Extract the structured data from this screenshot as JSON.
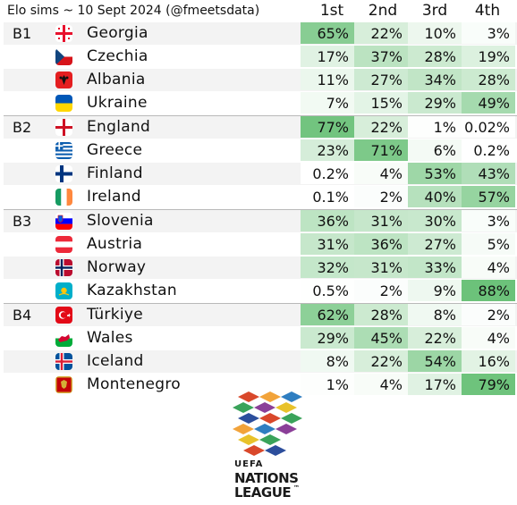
{
  "header": {
    "title": "Elo sims ~ 10 Sept 2024 (@fmeetsdata)",
    "columns": [
      "1st",
      "2nd",
      "3rd",
      "4th"
    ]
  },
  "groups": [
    {
      "label": "B1",
      "teams": [
        {
          "name": "Georgia",
          "flag": "georgia-flag",
          "values": [
            "65%",
            "22%",
            "10%",
            "3%"
          ],
          "probs": [
            65,
            22,
            10,
            3
          ]
        },
        {
          "name": "Czechia",
          "flag": "czechia-flag",
          "values": [
            "17%",
            "37%",
            "28%",
            "19%"
          ],
          "probs": [
            17,
            37,
            28,
            19
          ]
        },
        {
          "name": "Albania",
          "flag": "albania-flag",
          "values": [
            "11%",
            "27%",
            "34%",
            "28%"
          ],
          "probs": [
            11,
            27,
            34,
            28
          ]
        },
        {
          "name": "Ukraine",
          "flag": "ukraine-flag",
          "values": [
            "7%",
            "15%",
            "29%",
            "49%"
          ],
          "probs": [
            7,
            15,
            29,
            49
          ]
        }
      ]
    },
    {
      "label": "B2",
      "teams": [
        {
          "name": "England",
          "flag": "england-flag",
          "values": [
            "77%",
            "22%",
            "1%",
            "0.02%"
          ],
          "probs": [
            77,
            22,
            1,
            0.02
          ]
        },
        {
          "name": "Greece",
          "flag": "greece-flag",
          "values": [
            "23%",
            "71%",
            "6%",
            "0.2%"
          ],
          "probs": [
            23,
            71,
            6,
            0.2
          ]
        },
        {
          "name": "Finland",
          "flag": "finland-flag",
          "values": [
            "0.2%",
            "4%",
            "53%",
            "43%"
          ],
          "probs": [
            0.2,
            4,
            53,
            43
          ]
        },
        {
          "name": "Ireland",
          "flag": "ireland-flag",
          "values": [
            "0.1%",
            "2%",
            "40%",
            "57%"
          ],
          "probs": [
            0.1,
            2,
            40,
            57
          ]
        }
      ]
    },
    {
      "label": "B3",
      "teams": [
        {
          "name": "Slovenia",
          "flag": "slovenia-flag",
          "values": [
            "36%",
            "31%",
            "30%",
            "3%"
          ],
          "probs": [
            36,
            31,
            30,
            3
          ]
        },
        {
          "name": "Austria",
          "flag": "austria-flag",
          "values": [
            "31%",
            "36%",
            "27%",
            "5%"
          ],
          "probs": [
            31,
            36,
            27,
            5
          ]
        },
        {
          "name": "Norway",
          "flag": "norway-flag",
          "values": [
            "32%",
            "31%",
            "33%",
            "4%"
          ],
          "probs": [
            32,
            31,
            33,
            4
          ]
        },
        {
          "name": "Kazakhstan",
          "flag": "kazakhstan-flag",
          "values": [
            "0.5%",
            "2%",
            "9%",
            "88%"
          ],
          "probs": [
            0.5,
            2,
            9,
            88
          ]
        }
      ]
    },
    {
      "label": "B4",
      "teams": [
        {
          "name": "Türkiye",
          "flag": "turkiye-flag",
          "values": [
            "62%",
            "28%",
            "8%",
            "2%"
          ],
          "probs": [
            62,
            28,
            8,
            2
          ]
        },
        {
          "name": "Wales",
          "flag": "wales-flag",
          "values": [
            "29%",
            "45%",
            "22%",
            "4%"
          ],
          "probs": [
            29,
            45,
            22,
            4
          ]
        },
        {
          "name": "Iceland",
          "flag": "iceland-flag",
          "values": [
            "8%",
            "22%",
            "54%",
            "16%"
          ],
          "probs": [
            8,
            22,
            54,
            16
          ]
        },
        {
          "name": "Montenegro",
          "flag": "montenegro-flag",
          "values": [
            "1%",
            "4%",
            "17%",
            "79%"
          ],
          "probs": [
            1,
            4,
            17,
            79
          ]
        }
      ]
    }
  ],
  "logo": {
    "line1": "UEFA",
    "line2": "NATIONS",
    "line3": "LEAGUE",
    "tm": "™"
  },
  "colors": {
    "heat_max": "#6cc27a",
    "heat_min": "#ffffff",
    "stripe": "#f3f3f3",
    "separator": "#b9b9b9"
  }
}
